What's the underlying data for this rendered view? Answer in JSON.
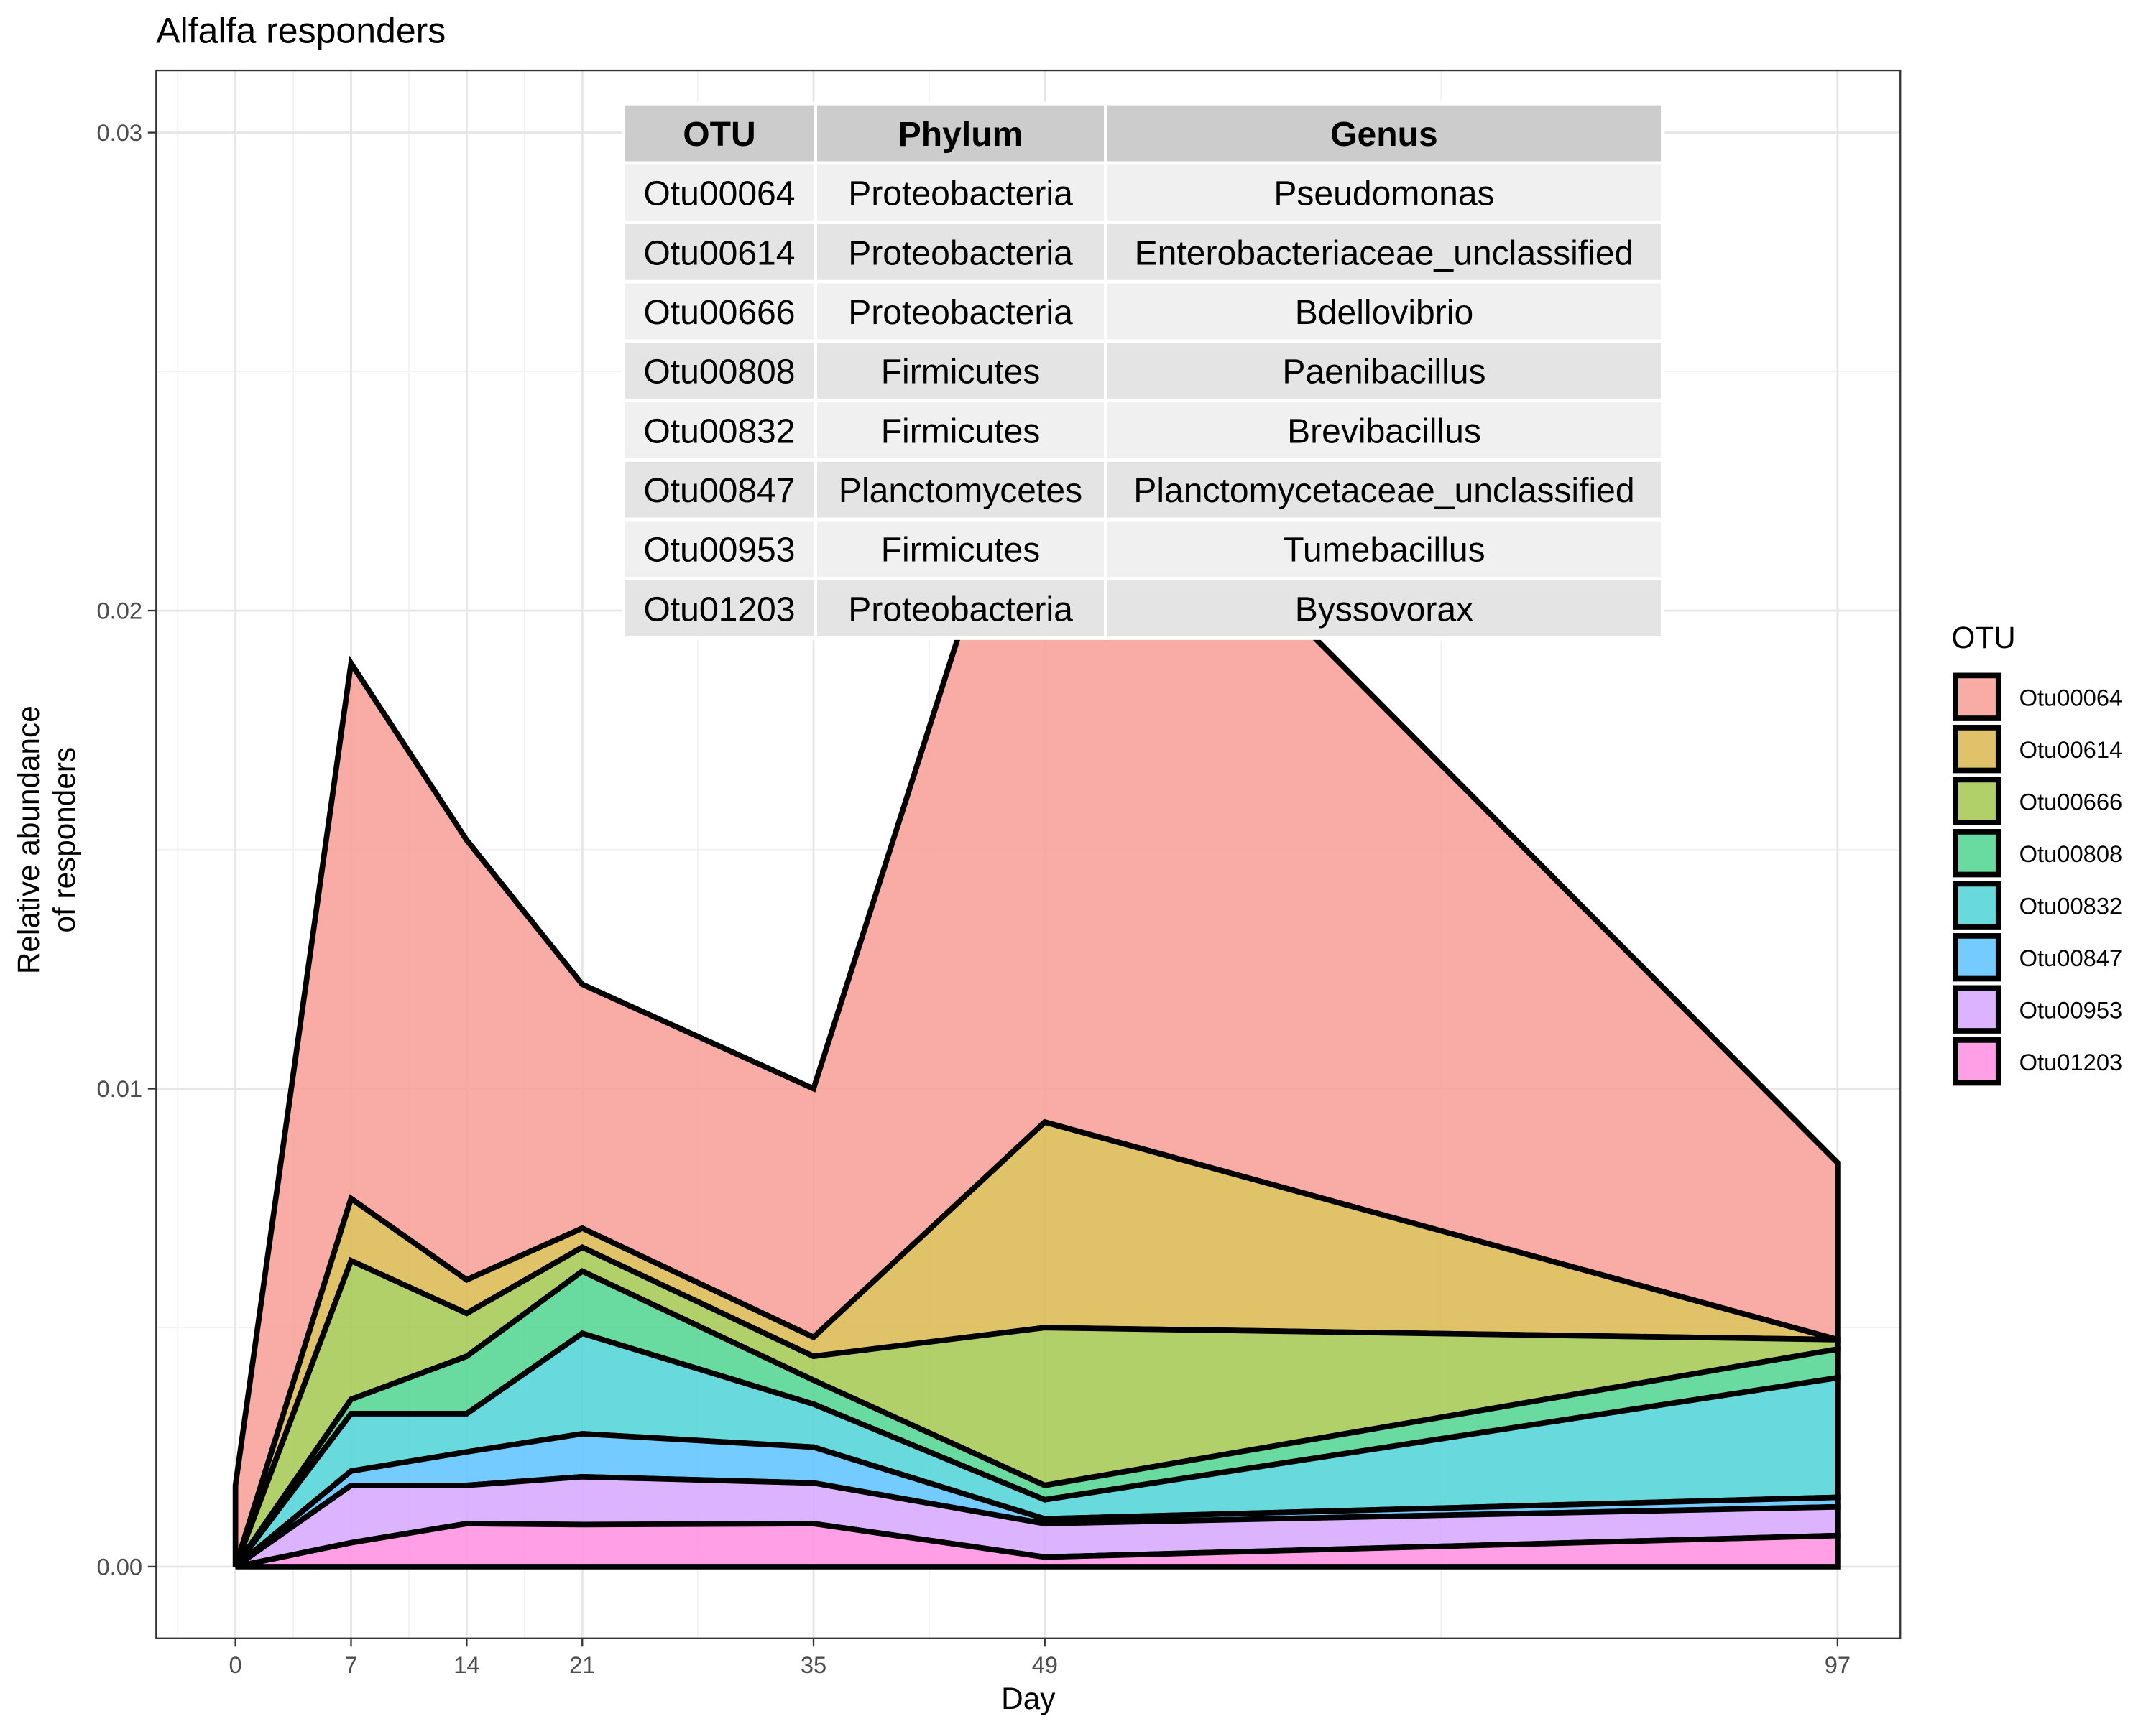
{
  "chart_data": {
    "type": "area",
    "stacked": true,
    "title": "Alfalfa responders",
    "xlabel": "Day",
    "ylabel_lines": [
      "Relative abundance",
      "of responders"
    ],
    "x": [
      0,
      7,
      14,
      21,
      35,
      49,
      97
    ],
    "x_ticks": [
      0,
      7,
      14,
      21,
      35,
      49,
      97
    ],
    "y_ticks": [
      0.0,
      0.01,
      0.02,
      0.03
    ],
    "y_tick_labels": [
      "0.00",
      "0.01",
      "0.02",
      "0.03"
    ],
    "xlim": [
      -4.8,
      100.8
    ],
    "ylim": [
      -0.0015,
      0.0313
    ],
    "grid": true,
    "legend_title": "OTU",
    "legend_position": "right",
    "series": [
      {
        "name": "Otu01203",
        "color": "#ff8ee0",
        "values": [
          0.0,
          0.0005,
          0.0009,
          0.00088,
          0.0009,
          0.0002,
          0.00065
        ]
      },
      {
        "name": "Otu00953",
        "color": "#d6a6ff",
        "values": [
          0.0,
          0.0012,
          0.0008,
          0.001,
          0.00085,
          0.0007,
          0.0006
        ]
      },
      {
        "name": "Otu00847",
        "color": "#5bc2ff",
        "values": [
          0.0,
          0.0003,
          0.0007,
          0.0009,
          0.00075,
          0.0001,
          0.0002
        ]
      },
      {
        "name": "Otu00832",
        "color": "#4dd4d8",
        "values": [
          0.0,
          0.0012,
          0.0008,
          0.0021,
          0.0009,
          0.0004,
          0.0025
        ]
      },
      {
        "name": "Otu00808",
        "color": "#4fd38f",
        "values": [
          0.0,
          0.0003,
          0.0012,
          0.0013,
          0.0005,
          0.0003,
          0.0006
        ]
      },
      {
        "name": "Otu00666",
        "color": "#a4c850",
        "values": [
          0.0,
          0.0029,
          0.0009,
          0.0005,
          0.0005,
          0.0033,
          0.0002
        ]
      },
      {
        "name": "Otu00614",
        "color": "#dbb94e",
        "values": [
          0.0,
          0.0013,
          0.0007,
          0.0004,
          0.0004,
          0.0043,
          0.0
        ]
      },
      {
        "name": "Otu00064",
        "color": "#f89c96",
        "values": [
          0.0017,
          0.0112,
          0.0092,
          0.0051,
          0.0052,
          0.0158,
          0.0037
        ]
      }
    ],
    "table": {
      "headers": [
        "OTU",
        "Phylum",
        "Genus"
      ],
      "rows": [
        [
          "Otu00064",
          "Proteobacteria",
          "Pseudomonas"
        ],
        [
          "Otu00614",
          "Proteobacteria",
          "Enterobacteriaceae_unclassified"
        ],
        [
          "Otu00666",
          "Proteobacteria",
          "Bdellovibrio"
        ],
        [
          "Otu00808",
          "Firmicutes",
          "Paenibacillus"
        ],
        [
          "Otu00832",
          "Firmicutes",
          "Brevibacillus"
        ],
        [
          "Otu00847",
          "Planctomycetes",
          "Planctomycetaceae_unclassified"
        ],
        [
          "Otu00953",
          "Firmicutes",
          "Tumebacillus"
        ],
        [
          "Otu01203",
          "Proteobacteria",
          "Byssovorax"
        ]
      ]
    },
    "legend_order": [
      "Otu00064",
      "Otu00614",
      "Otu00666",
      "Otu00808",
      "Otu00832",
      "Otu00847",
      "Otu00953",
      "Otu01203"
    ]
  }
}
